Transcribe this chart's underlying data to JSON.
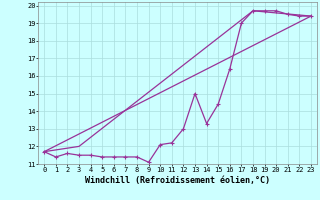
{
  "xlabel": "Windchill (Refroidissement éolien,°C)",
  "xlim": [
    -0.5,
    23.5
  ],
  "ylim": [
    11,
    20.2
  ],
  "xticks": [
    0,
    1,
    2,
    3,
    4,
    5,
    6,
    7,
    8,
    9,
    10,
    11,
    12,
    13,
    14,
    15,
    16,
    17,
    18,
    19,
    20,
    21,
    22,
    23
  ],
  "yticks": [
    11,
    12,
    13,
    14,
    15,
    16,
    17,
    18,
    19,
    20
  ],
  "line_color": "#993399",
  "bg_color": "#ccffff",
  "grid_color": "#aadddd",
  "series": [
    {
      "x": [
        0,
        1,
        2,
        3,
        4,
        5,
        6,
        7,
        8,
        9,
        10,
        11,
        12,
        13,
        14,
        15,
        16,
        17,
        18,
        19,
        20,
        21,
        22,
        23
      ],
      "y": [
        11.7,
        11.4,
        11.6,
        11.5,
        11.5,
        11.4,
        11.4,
        11.4,
        11.4,
        11.1,
        12.1,
        12.2,
        13.0,
        15.0,
        13.3,
        14.4,
        16.4,
        19.0,
        19.7,
        19.7,
        19.7,
        19.5,
        19.4,
        19.4
      ]
    },
    {
      "x": [
        0,
        23
      ],
      "y": [
        11.7,
        19.4
      ]
    },
    {
      "x": [
        0,
        3,
        18,
        23
      ],
      "y": [
        11.7,
        12.0,
        19.7,
        19.4
      ]
    }
  ],
  "marker": "+",
  "markersize": 3.5,
  "linewidth": 0.9,
  "font_family": "monospace",
  "tick_fontsize": 5.0,
  "label_fontsize": 6.0
}
